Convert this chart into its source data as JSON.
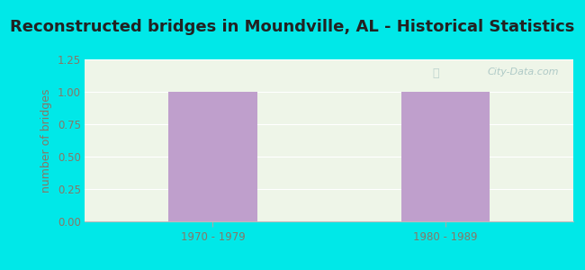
{
  "title": "Reconstructed bridges in Moundville, AL - Historical Statistics",
  "categories": [
    "1970 - 1979",
    "1980 - 1989"
  ],
  "values": [
    1,
    1
  ],
  "bar_color": "#bf9fcc",
  "ylabel": "number of bridges",
  "ylim": [
    0,
    1.25
  ],
  "yticks": [
    0,
    0.25,
    0.5,
    0.75,
    1,
    1.25
  ],
  "background_outer": "#00e8e8",
  "background_plot": "#eef5e8",
  "title_fontsize": 13,
  "axis_label_fontsize": 9,
  "tick_fontsize": 8.5,
  "grid_color": "#ffffff",
  "tick_color": "#887766",
  "title_color": "#222222",
  "watermark": "City-Data.com",
  "bar_width": 0.38
}
